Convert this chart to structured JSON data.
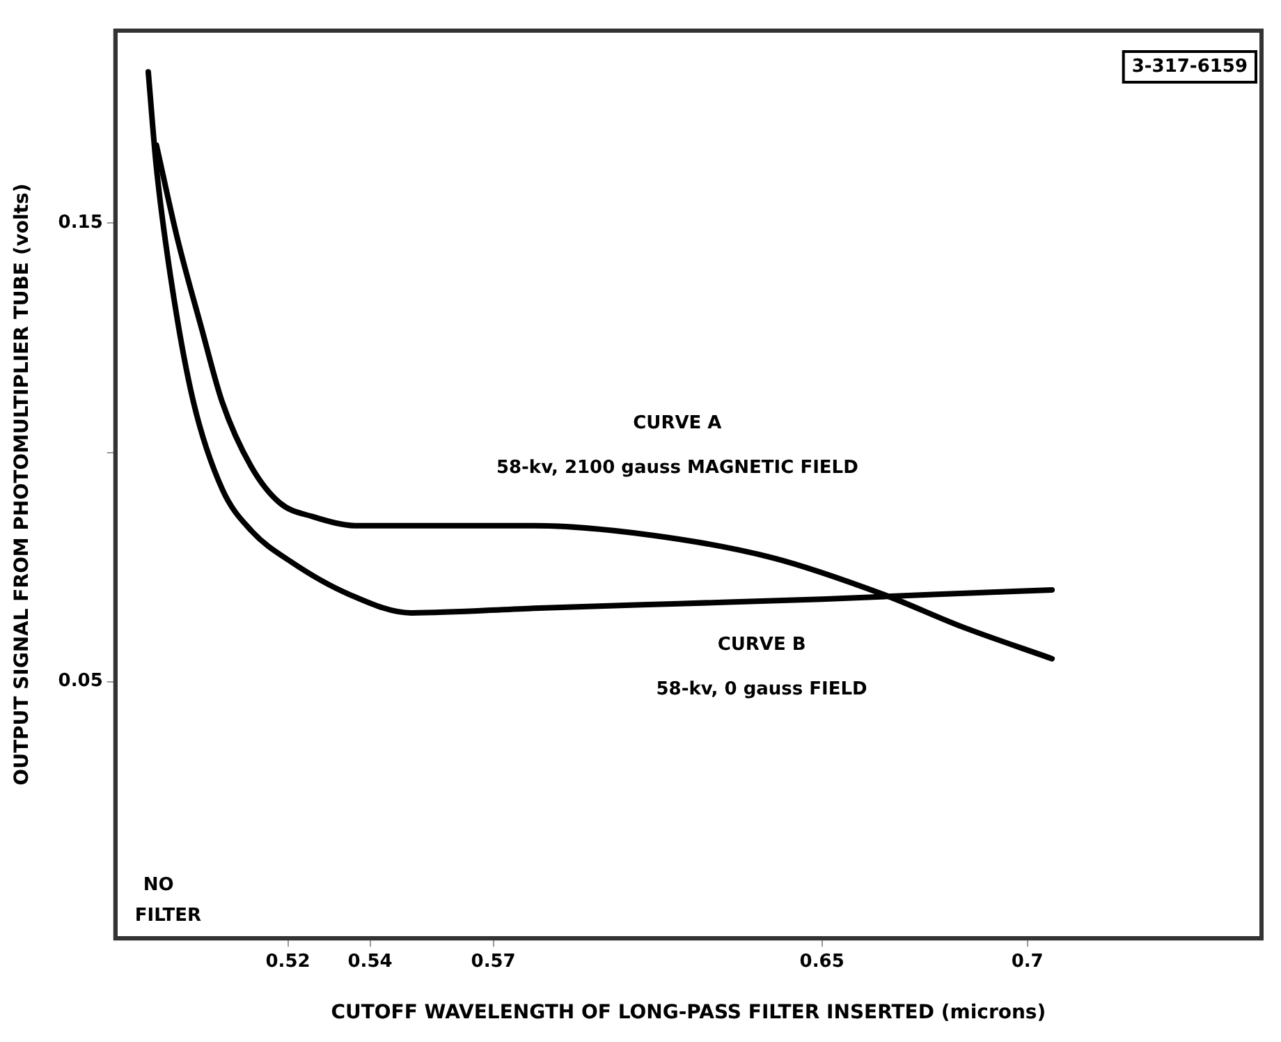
{
  "chart_data": {
    "type": "line",
    "xlabel": "CUTOFF WAVELENGTH OF LONG-PASS FILTER INSERTED (microns)",
    "ylabel": "OUTPUT SIGNAL FROM PHOTOMULTIPLIER TUBE (volts)",
    "xlim": [
      0.478,
      0.757
    ],
    "xticks": [
      0.52,
      0.54,
      0.57,
      0.65,
      0.7
    ],
    "ylim": [
      -0.006,
      0.192
    ],
    "yticks": [
      0.05,
      {
        "value": 0.1,
        "label": null
      },
      0.15
    ],
    "grid": false,
    "legend": false,
    "marker": "none",
    "line_style": "solid",
    "series": [
      {
        "name": "CURVE A\n58-kv, 2100 gauss MAGNETIC FIELD",
        "color": "#000000",
        "x": [
          0.488,
          0.493,
          0.499,
          0.504,
          0.511,
          0.518,
          0.526,
          0.537,
          0.563,
          0.58,
          0.608,
          0.638,
          0.665,
          0.684,
          0.706
        ],
        "values": [
          0.167,
          0.147,
          0.127,
          0.111,
          0.097,
          0.089,
          0.086,
          0.084,
          0.084,
          0.084,
          0.082,
          0.077,
          0.069,
          0.062,
          0.055
        ]
      },
      {
        "name": "CURVE B\n58-kv, 0 gauss FIELD",
        "color": "#000000",
        "x": [
          0.486,
          0.488,
          0.492,
          0.497,
          0.504,
          0.511,
          0.521,
          0.535,
          0.55,
          0.58,
          0.615,
          0.65,
          0.677,
          0.706
        ],
        "values": [
          0.183,
          0.162,
          0.135,
          0.111,
          0.092,
          0.083,
          0.076,
          0.069,
          0.065,
          0.066,
          0.067,
          0.068,
          0.069,
          0.07
        ]
      }
    ],
    "annotations": [
      "NO\nFILTER",
      "3-317-6159"
    ]
  }
}
